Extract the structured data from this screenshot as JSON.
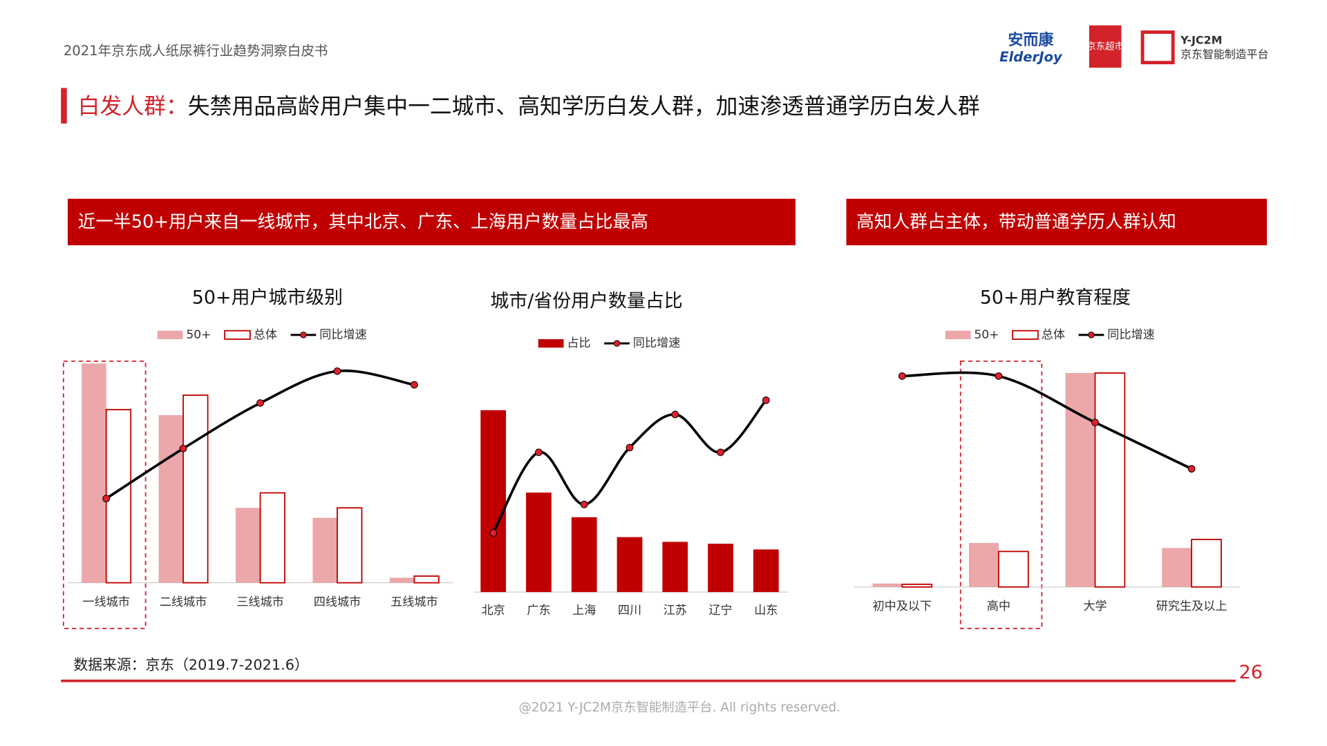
{
  "header": {
    "report": "2021年京东成人纸尿裤行业趋势洞察白皮书"
  },
  "logos": {
    "brand_cn": "安而康",
    "brand_en": "ElderJoy",
    "store": "京东超市",
    "platform_en": "Y-JC2M",
    "platform_cn": "京东智能制造平台"
  },
  "title": {
    "highlight": "白发人群：",
    "text": "失禁用品高龄用户集中一二城市、高知学历白发人群，加速渗透普通学历白发人群"
  },
  "banners": [
    "近一半50+用户来自一线城市，其中北京、广东、上海用户数量占比最高",
    "高知人群占主体，带动普通学历人群认知"
  ],
  "source": "数据来源：京东（2019.7-2021.6）",
  "page_number": "26",
  "footer": "@2021 Y-JC2M京东智能制造平台. All rights reserved.",
  "chart_data": [
    {
      "type": "bar",
      "title": "50+用户城市级别",
      "categories": [
        "一线城市",
        "二线城市",
        "三线城市",
        "四线城市",
        "五线城市"
      ],
      "series": [
        {
          "name": "50+",
          "color": "#eba7aa",
          "values": [
            39.5,
            30.2,
            13.5,
            11.7,
            0.9
          ]
        },
        {
          "name": "总体",
          "color": "#c00000",
          "fill": "#ffffff",
          "values": [
            31.2,
            33.8,
            16.2,
            13.5,
            1.2
          ]
        },
        {
          "name": "同比增速",
          "type": "line",
          "axis": "y2",
          "color": "#000000",
          "values": [
            37,
            59,
            79,
            93,
            87
          ]
        }
      ],
      "ylim": [
        0,
        41
      ],
      "y2lim": [
        0,
        100
      ]
    },
    {
      "type": "bar",
      "title": "城市/省份用户数量占比",
      "categories": [
        "北京",
        "广东",
        "上海",
        "四川",
        "江苏",
        "辽宁",
        "山东"
      ],
      "series": [
        {
          "name": "占比",
          "color": "#c00000",
          "values": [
            19.2,
            10.5,
            7.9,
            5.8,
            5.3,
            5.1,
            4.5
          ]
        },
        {
          "name": "同比增速",
          "type": "line",
          "axis": "y2",
          "color": "#000000",
          "values": [
            25,
            59,
            37,
            61,
            75,
            59,
            81
          ]
        }
      ],
      "ylim": [
        0,
        25
      ],
      "y2lim": [
        0,
        100
      ]
    },
    {
      "type": "bar",
      "title": "50+用户教育程度",
      "categories": [
        "初中及以下",
        "高中",
        "大学",
        "研究生及以上"
      ],
      "series": [
        {
          "name": "50+",
          "color": "#eba7aa",
          "values": [
            0.9,
            11.4,
            55.4,
            10.1
          ]
        },
        {
          "name": "总体",
          "color": "#c00000",
          "fill": "#ffffff",
          "values": [
            0.7,
            9.2,
            55.4,
            12.3
          ]
        },
        {
          "name": "同比增速",
          "type": "line",
          "axis": "y2",
          "color": "#000000",
          "values": [
            91,
            91,
            71,
            51
          ]
        }
      ],
      "ylim": [
        0,
        60
      ],
      "y2lim": [
        0,
        100
      ]
    }
  ]
}
